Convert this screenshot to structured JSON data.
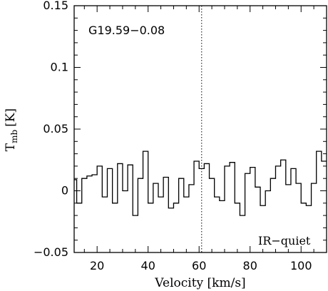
{
  "chart_data": {
    "type": "line",
    "step": true,
    "source_label": "G19.59−0.08",
    "class_label": "IR−quiet",
    "xlabel": "Velocity [km/s]",
    "ylabel_main": "T",
    "ylabel_sub": "mb",
    "ylabel_unit": "[K]",
    "xlim": [
      11,
      110
    ],
    "ylim": [
      -0.05,
      0.15
    ],
    "xticks": [
      20,
      40,
      60,
      80,
      100
    ],
    "yticks": [
      -0.05,
      0,
      0.05,
      0.1,
      0.15
    ],
    "ytick_labels": [
      "−0.05",
      "0",
      "0.05",
      "0.1",
      "0.15"
    ],
    "vline_x": 61,
    "x": [
      11.0,
      13.0,
      15.0,
      17.0,
      19.0,
      21.0,
      23.0,
      25.0,
      27.0,
      29.0,
      31.0,
      33.0,
      35.0,
      37.0,
      39.0,
      41.0,
      43.0,
      45.0,
      47.0,
      49.0,
      51.0,
      53.0,
      55.0,
      57.0,
      59.0,
      61.0,
      63.0,
      65.0,
      67.0,
      69.0,
      71.0,
      73.0,
      75.0,
      77.0,
      79.0,
      81.0,
      83.0,
      85.0,
      87.0,
      89.0,
      91.0,
      93.0,
      95.0,
      97.0,
      99.0,
      101.0,
      103.0,
      105.0,
      107.0,
      109.0
    ],
    "y": [
      0.009,
      -0.01,
      0.01,
      0.012,
      0.013,
      0.02,
      -0.005,
      0.018,
      -0.01,
      0.022,
      0.0,
      0.021,
      -0.02,
      0.01,
      0.032,
      -0.01,
      0.006,
      -0.005,
      0.011,
      -0.014,
      -0.01,
      0.01,
      -0.005,
      0.005,
      0.024,
      0.018,
      0.022,
      0.01,
      -0.005,
      -0.008,
      0.02,
      0.023,
      -0.01,
      -0.02,
      0.014,
      0.019,
      0.003,
      -0.012,
      0.0,
      0.01,
      0.02,
      0.025,
      0.005,
      0.018,
      0.006,
      -0.01,
      -0.012,
      0.006,
      0.032,
      0.024
    ]
  }
}
